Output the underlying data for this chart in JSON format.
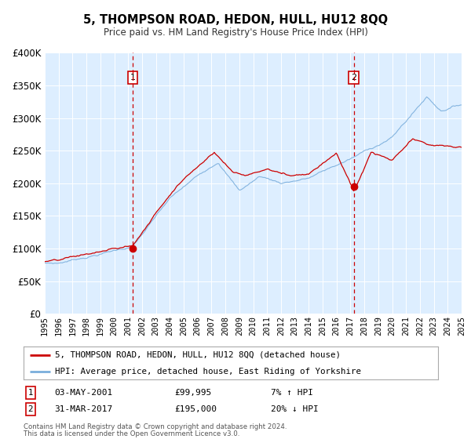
{
  "title": "5, THOMPSON ROAD, HEDON, HULL, HU12 8QQ",
  "subtitle": "Price paid vs. HM Land Registry's House Price Index (HPI)",
  "legend_line1": "5, THOMPSON ROAD, HEDON, HULL, HU12 8QQ (detached house)",
  "legend_line2": "HPI: Average price, detached house, East Riding of Yorkshire",
  "annotation1_label": "1",
  "annotation1_date": "03-MAY-2001",
  "annotation1_price": "£99,995",
  "annotation1_hpi": "7% ↑ HPI",
  "annotation2_label": "2",
  "annotation2_date": "31-MAR-2017",
  "annotation2_price": "£195,000",
  "annotation2_hpi": "20% ↓ HPI",
  "footer1": "Contains HM Land Registry data © Crown copyright and database right 2024.",
  "footer2": "This data is licensed under the Open Government Licence v3.0.",
  "sale1_year": 2001.34,
  "sale1_value": 99995,
  "sale2_year": 2017.25,
  "sale2_value": 195000,
  "price_line_color": "#cc0000",
  "hpi_line_color": "#7aaedc",
  "bg_color": "#ddeeff",
  "annotation_vline_color": "#cc0000",
  "ylim_max": 400000,
  "ylim_min": 0,
  "xmin": 1995,
  "xmax": 2025
}
